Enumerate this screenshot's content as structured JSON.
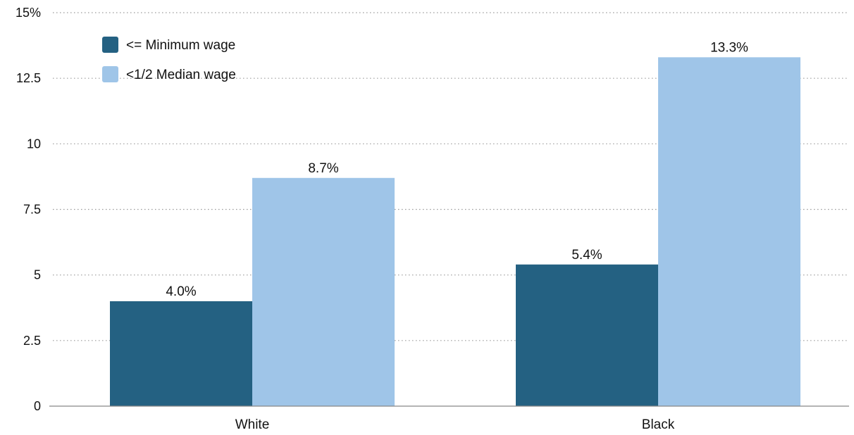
{
  "chart_data": {
    "type": "bar",
    "title": "",
    "xlabel": "",
    "ylabel": "",
    "categories": [
      "White",
      "Black"
    ],
    "series": [
      {
        "name": "<= Minimum wage",
        "values": [
          4.0,
          5.4
        ],
        "labels": [
          "4.0%",
          "5.4%"
        ],
        "color": "#246182"
      },
      {
        "name": "<1/2 Median wage",
        "values": [
          8.7,
          13.3
        ],
        "labels": [
          "8.7%",
          "13.3%"
        ],
        "color": "#9fc5e8"
      }
    ],
    "ylim": [
      0,
      15
    ],
    "yticks": [
      {
        "value": 0,
        "label": "0"
      },
      {
        "value": 2.5,
        "label": "2.5"
      },
      {
        "value": 5,
        "label": "5"
      },
      {
        "value": 7.5,
        "label": "7.5"
      },
      {
        "value": 10,
        "label": "10"
      },
      {
        "value": 12.5,
        "label": "12.5"
      },
      {
        "value": 15,
        "label": "15%"
      }
    ],
    "grid": true,
    "legend_position": "top-left"
  }
}
